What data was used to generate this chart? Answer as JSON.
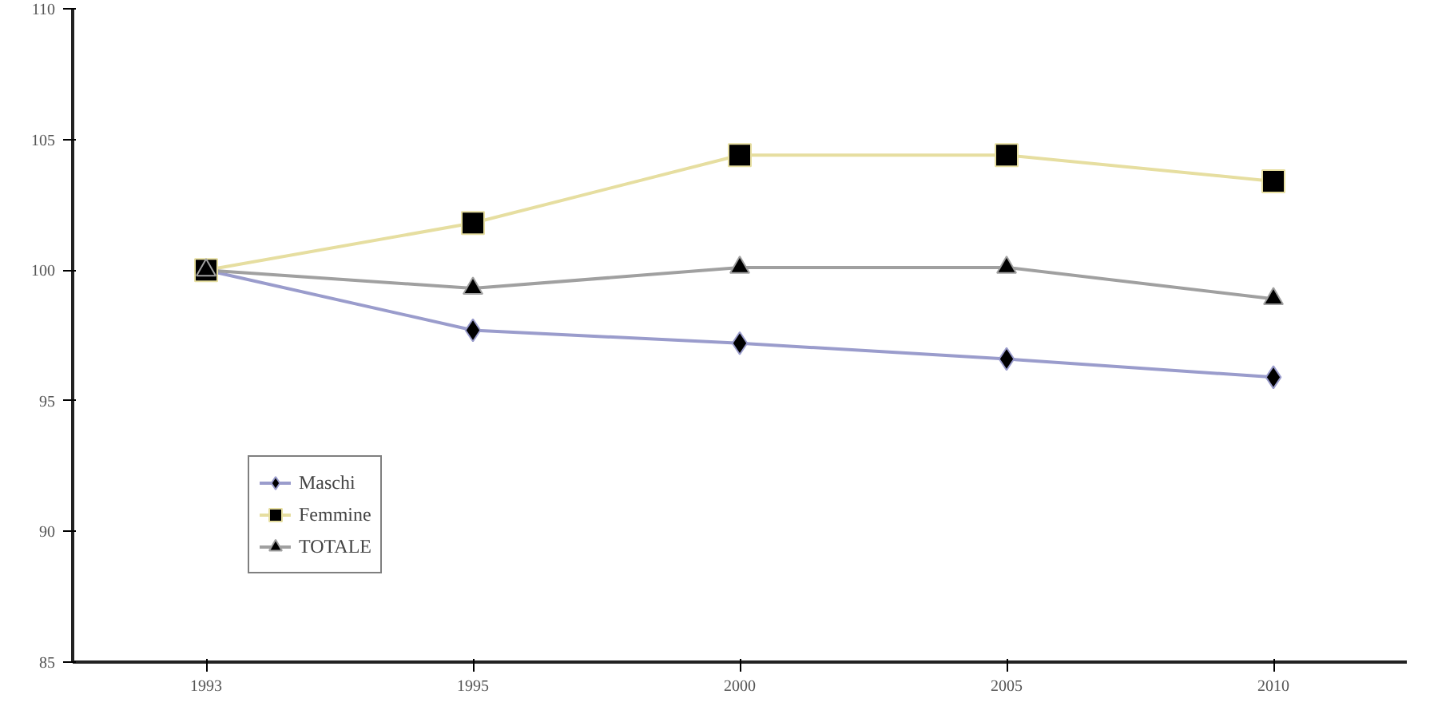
{
  "chart_data": {
    "type": "line",
    "categories": [
      "1993",
      "1995",
      "2000",
      "2005",
      "2010"
    ],
    "series": [
      {
        "name": "Maschi",
        "color": "#9a9ccc",
        "marker": "diamond",
        "values": [
          100,
          97.7,
          97.2,
          96.6,
          95.9
        ]
      },
      {
        "name": "Femmine",
        "color": "#e6dea0",
        "marker": "square",
        "values": [
          100,
          101.8,
          104.4,
          104.4,
          103.4
        ]
      },
      {
        "name": "TOTALE",
        "color": "#a0a0a0",
        "marker": "triangle",
        "values": [
          100,
          99.3,
          100.1,
          100.1,
          98.9
        ]
      }
    ],
    "ylim": [
      85,
      110
    ],
    "yticks": [
      85,
      90,
      95,
      100,
      105,
      110
    ],
    "grid": false,
    "legend": "bottom left"
  }
}
